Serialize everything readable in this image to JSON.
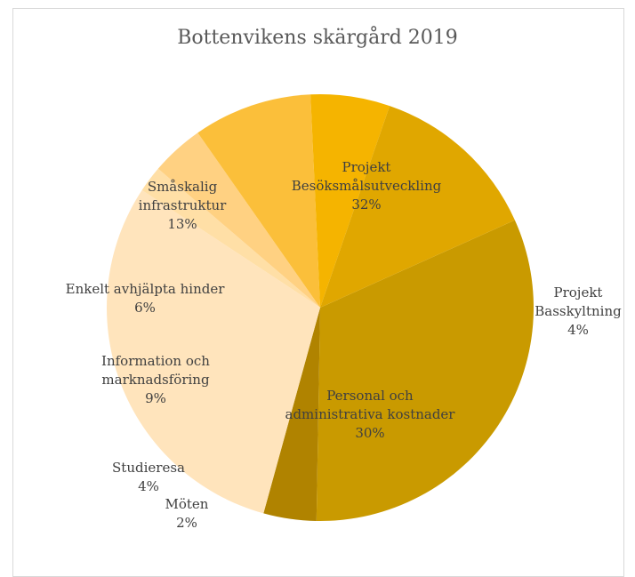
{
  "chart_data": {
    "type": "pie",
    "title": "Bottenvikens skärgård 2019",
    "start_angle_deg": 65.8,
    "direction": "clockwise",
    "slices": [
      {
        "label": "Projekt Besöksmålsutveckling",
        "label_lines": [
          "Projekt",
          "Besöksmålsutveckling"
        ],
        "percent_label": "32%",
        "value": 32,
        "color": "#C99A00"
      },
      {
        "label": "Projekt Basskyltning",
        "label_lines": [
          "Projekt",
          "Basskyltning"
        ],
        "percent_label": "4%",
        "value": 4,
        "color": "#B08300"
      },
      {
        "label": "Personal och administrativa kostnader",
        "label_lines": [
          "Personal och",
          "administrativa kostnader"
        ],
        "percent_label": "30%",
        "value": 30,
        "color": "#FFE4BC"
      },
      {
        "label": "Möten",
        "label_lines": [
          "Möten"
        ],
        "percent_label": "2%",
        "value": 2,
        "color": "#FFDFA6"
      },
      {
        "label": "Studieresa",
        "label_lines": [
          "Studieresa"
        ],
        "percent_label": "4%",
        "value": 4,
        "color": "#FFD182"
      },
      {
        "label": "Information och marknadsföring",
        "label_lines": [
          "Information och",
          "marknadsföring"
        ],
        "percent_label": "9%",
        "value": 9,
        "color": "#FBBF3A"
      },
      {
        "label": "Enkelt avhjälpta hinder",
        "label_lines": [
          "Enkelt avhjälpta hinder"
        ],
        "percent_label": "6%",
        "value": 6,
        "color": "#F5B400"
      },
      {
        "label": "Småskalig infrastruktur",
        "label_lines": [
          "Småskalig",
          "infrastruktur"
        ],
        "percent_label": "13%",
        "value": 13,
        "color": "#E0A700"
      }
    ]
  }
}
